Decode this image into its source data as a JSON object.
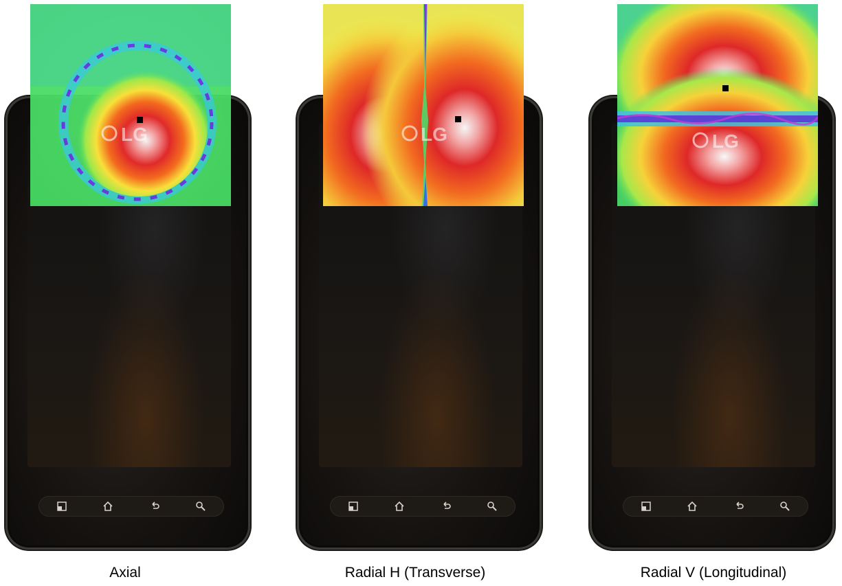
{
  "panels": [
    {
      "caption": "Axial",
      "logo_text": "LG",
      "nav_icons": [
        "recent-apps-icon",
        "home-icon",
        "back-icon",
        "search-icon"
      ]
    },
    {
      "caption": "Radial H (Transverse)",
      "logo_text": "LG",
      "nav_icons": [
        "recent-apps-icon",
        "home-icon",
        "back-icon",
        "search-icon"
      ]
    },
    {
      "caption": "Radial V (Longitudinal)",
      "logo_text": "LG",
      "nav_icons": [
        "recent-apps-icon",
        "home-icon",
        "back-icon",
        "search-icon"
      ]
    }
  ],
  "colors": {
    "background": "#ffffff",
    "phone_body": "#151210",
    "marker": "#000000"
  }
}
